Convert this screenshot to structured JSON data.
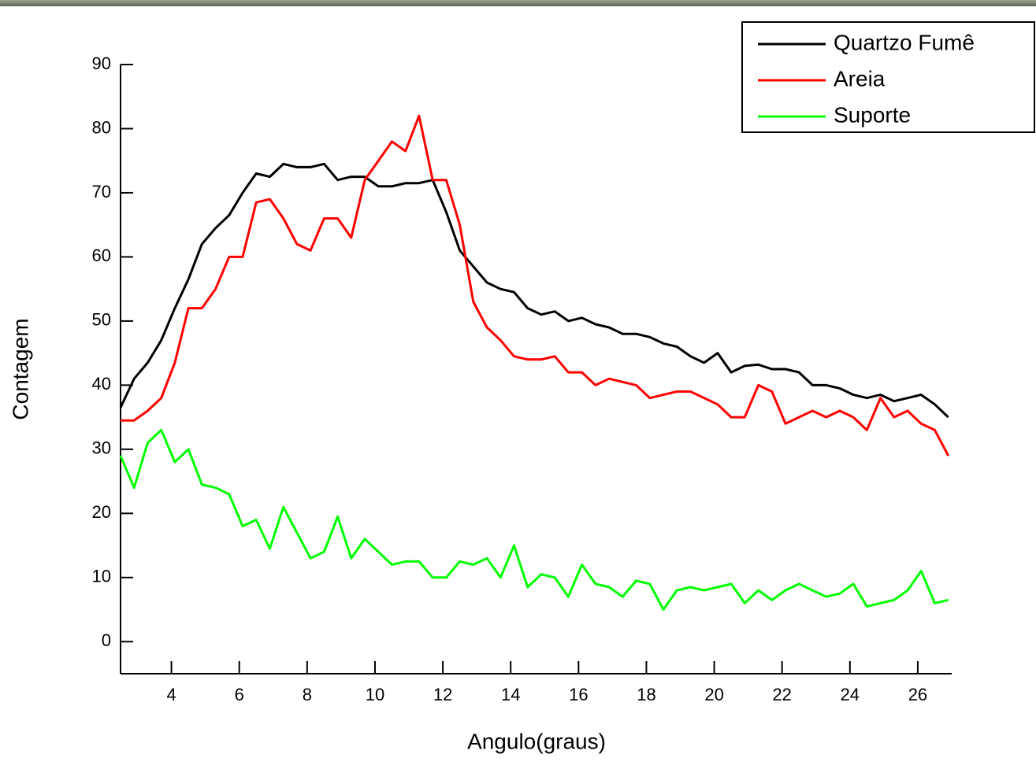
{
  "chart_data": {
    "type": "line",
    "xlabel": "Angulo(graus)",
    "ylabel": "Contagem",
    "x": [
      2.5,
      2.9,
      3.3,
      3.7,
      4.1,
      4.5,
      4.9,
      5.3,
      5.7,
      6.1,
      6.5,
      6.9,
      7.3,
      7.7,
      8.1,
      8.5,
      8.9,
      9.3,
      9.7,
      10.1,
      10.5,
      10.9,
      11.3,
      11.7,
      12.1,
      12.5,
      12.9,
      13.3,
      13.7,
      14.1,
      14.5,
      14.9,
      15.3,
      15.7,
      16.1,
      16.5,
      16.9,
      17.3,
      17.7,
      18.1,
      18.5,
      18.9,
      19.3,
      19.7,
      20.1,
      20.5,
      20.9,
      21.3,
      21.7,
      22.1,
      22.5,
      22.9,
      23.3,
      23.7,
      24.1,
      24.5,
      24.9,
      25.3,
      25.7,
      26.1,
      26.5,
      26.9
    ],
    "series": [
      {
        "name": "Quartzo Fumê",
        "color": "#000000",
        "values": [
          36.5,
          41,
          43.5,
          47,
          52,
          56.5,
          62,
          64.5,
          66.5,
          70,
          73,
          72.5,
          74.5,
          74,
          74,
          74.5,
          72,
          72.5,
          72.5,
          71,
          71,
          71.5,
          71.5,
          72,
          67,
          61,
          58.5,
          56,
          55,
          54.5,
          52,
          51,
          51.5,
          50,
          50.5,
          49.5,
          49,
          48,
          48,
          47.5,
          46.5,
          46,
          44.5,
          43.5,
          45,
          42,
          43,
          43.2,
          42.5,
          42.5,
          42,
          40,
          40,
          39.5,
          38.5,
          38,
          38.5,
          37.5,
          38,
          38.5,
          37,
          35
        ]
      },
      {
        "name": "Areia",
        "color": "#ff0000",
        "values": [
          34.5,
          34.5,
          36,
          38,
          43.5,
          52,
          52,
          55,
          60,
          60,
          68.5,
          69,
          66,
          62,
          61,
          66,
          66,
          63,
          72,
          75,
          78,
          76.5,
          82,
          72,
          72,
          65,
          53,
          49,
          47,
          44.5,
          44,
          44,
          44.5,
          42,
          42,
          40,
          41,
          40.5,
          40,
          38,
          38.5,
          39,
          39,
          38,
          37,
          35,
          35,
          40,
          39,
          34,
          35,
          36,
          35,
          36,
          35,
          33,
          38,
          35,
          36,
          34,
          33,
          29
        ]
      },
      {
        "name": "Suporte",
        "color": "#00ff00",
        "values": [
          29,
          24,
          31,
          33,
          28,
          30,
          24.5,
          24,
          23,
          18,
          19,
          14.5,
          21,
          17,
          13,
          14,
          19.5,
          13,
          16,
          14,
          12,
          12.5,
          12.5,
          10,
          10,
          12.5,
          12,
          13,
          10,
          15,
          8.5,
          10.5,
          10,
          7,
          12,
          9,
          8.5,
          7,
          9.5,
          9,
          5,
          8,
          8.5,
          8,
          8.5,
          9,
          6,
          8,
          6.5,
          8,
          9,
          8,
          7,
          7.5,
          9,
          5.5,
          6,
          6.5,
          8,
          11,
          6,
          6.5
        ]
      }
    ],
    "xlim": [
      2.5,
      27
    ],
    "xticks": [
      4,
      6,
      8,
      10,
      12,
      14,
      16,
      18,
      20,
      22,
      24,
      26
    ],
    "ylim": [
      -5,
      90
    ],
    "yticks": [
      0,
      10,
      20,
      30,
      40,
      50,
      60,
      70,
      80,
      90
    ],
    "legend": "upper right"
  }
}
